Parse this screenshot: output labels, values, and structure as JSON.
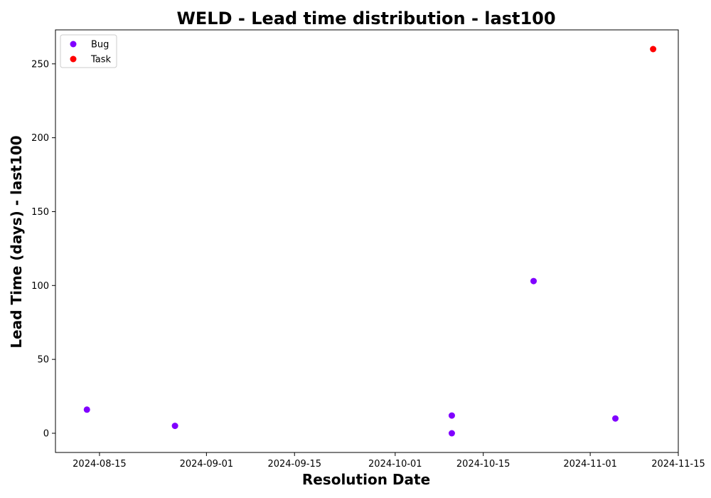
{
  "chart_data": {
    "type": "scatter",
    "title": "WELD - Lead time distribution - last100",
    "xlabel": "Resolution Date",
    "ylabel": "Lead Time (days) - last100",
    "x_axis_type": "date",
    "xlim": [
      "2024-08-08",
      "2024-11-15"
    ],
    "ylim": [
      -13,
      273
    ],
    "x_ticks": [
      "2024-08-15",
      "2024-09-01",
      "2024-09-15",
      "2024-10-01",
      "2024-10-15",
      "2024-11-01",
      "2024-11-15"
    ],
    "y_ticks": [
      0,
      50,
      100,
      150,
      200,
      250
    ],
    "grid": false,
    "legend_position": "top-left",
    "series": [
      {
        "name": "Bug",
        "color": "#8000ff",
        "points": [
          {
            "x": "2024-08-13",
            "y": 16
          },
          {
            "x": "2024-08-27",
            "y": 5
          },
          {
            "x": "2024-10-10",
            "y": 12
          },
          {
            "x": "2024-10-10",
            "y": 0
          },
          {
            "x": "2024-10-23",
            "y": 103
          },
          {
            "x": "2024-11-05",
            "y": 10
          }
        ]
      },
      {
        "name": "Task",
        "color": "#ff0000",
        "points": [
          {
            "x": "2024-11-11",
            "y": 260
          }
        ]
      }
    ]
  }
}
